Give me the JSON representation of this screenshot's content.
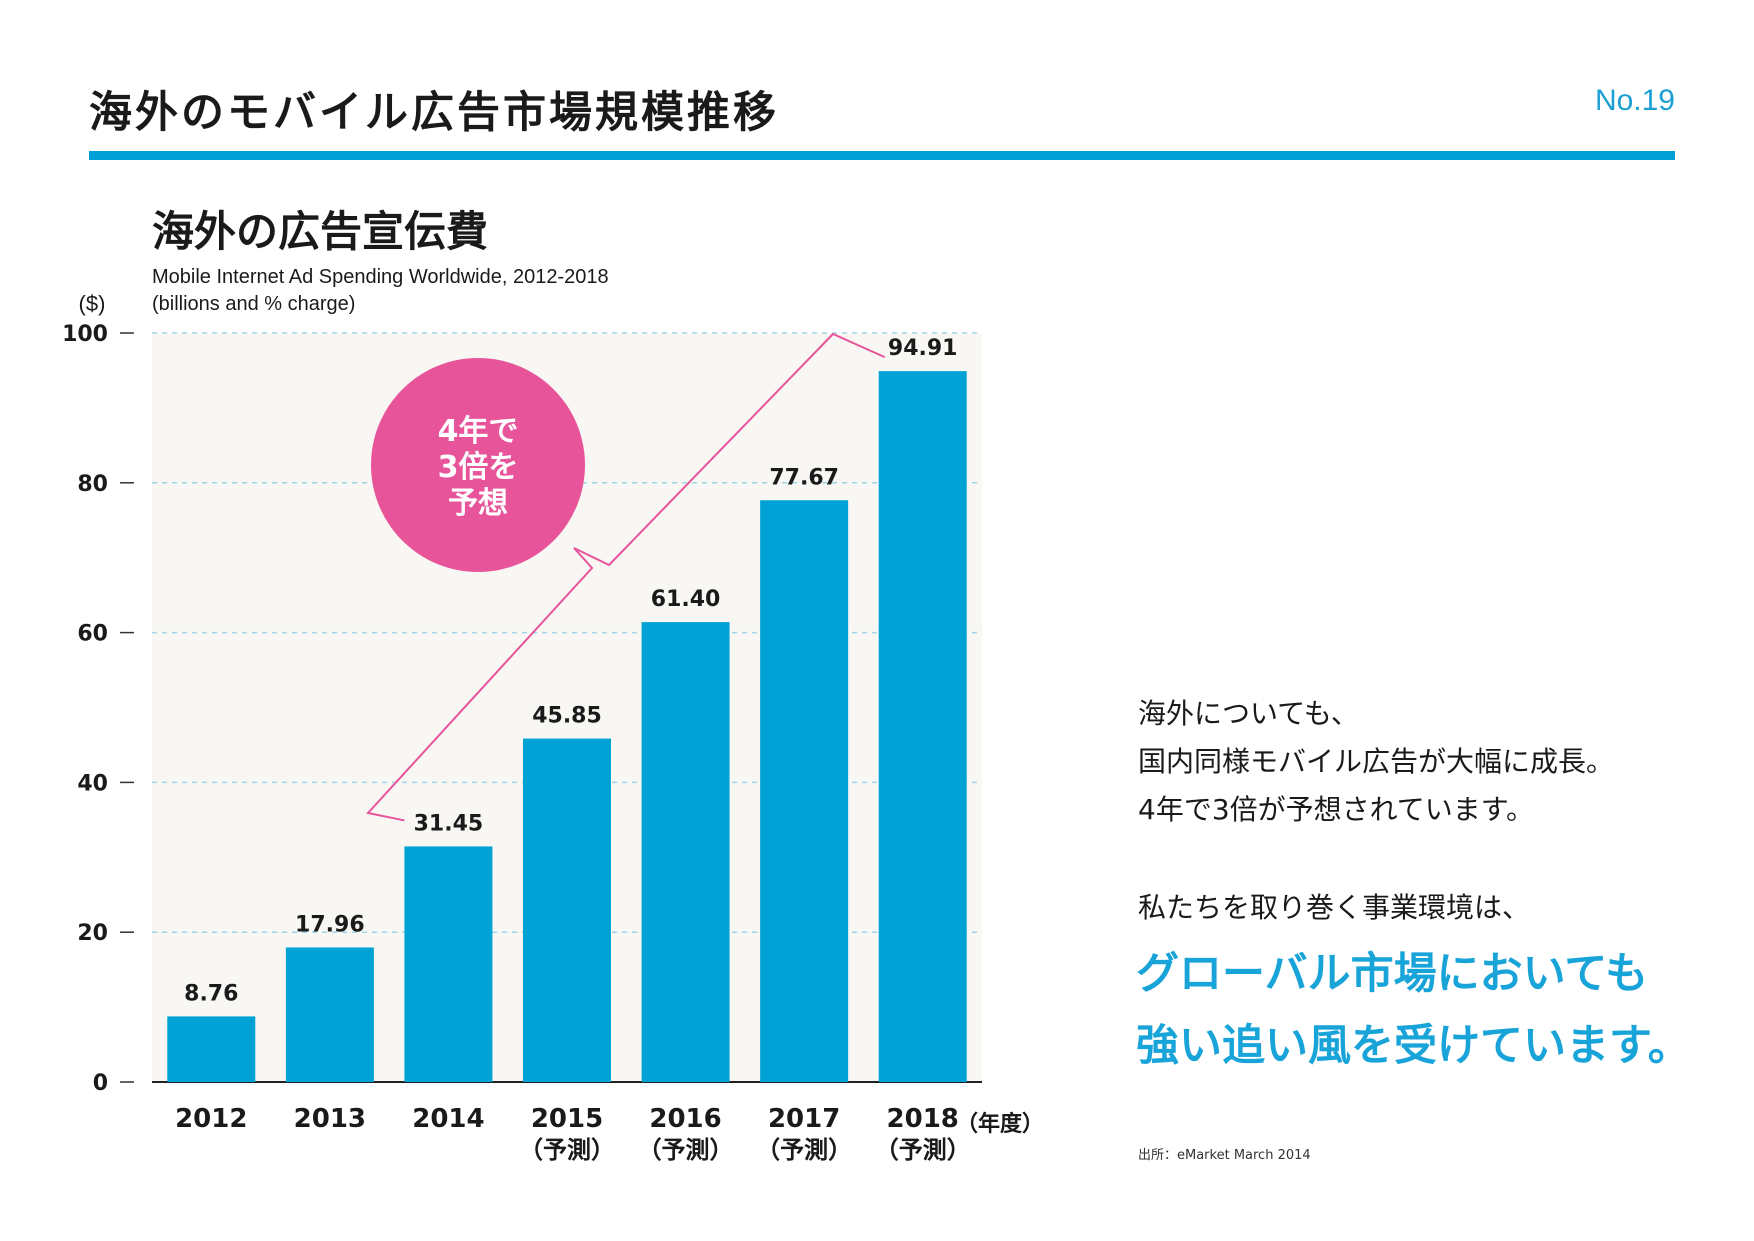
{
  "header": {
    "title": "海外のモバイル広告市場規模推移",
    "page_number": "No.19"
  },
  "colors": {
    "accent": "#00a0d6",
    "bar": "#00a2d5",
    "badge": "#e8549a",
    "emphasis": "#18a4d9",
    "plot_background": "#f8f7f4"
  },
  "chart_section": {
    "title": "海外の広告宣伝費",
    "source_line1": "Mobile Internet Ad Spending Worldwide, 2012-2018",
    "source_line2": "(billions and % charge)"
  },
  "chart_data": {
    "type": "bar",
    "title": "海外の広告宣伝費",
    "subtitle": "Mobile Internet Ad Spending Worldwide, 2012-2018 (billions and % charge)",
    "ylabel": "($)",
    "xlabel": "（年度）",
    "ylim": [
      0,
      100
    ],
    "yticks": [
      0,
      20,
      40,
      60,
      80,
      100
    ],
    "grid": true,
    "categories": [
      "2012",
      "2013",
      "2014",
      "2015",
      "2016",
      "2017",
      "2018"
    ],
    "category_notes": [
      "",
      "",
      "",
      "（予測）",
      "（予測）",
      "（予測）",
      "（予測）"
    ],
    "values": [
      8.76,
      17.96,
      31.45,
      45.85,
      61.4,
      77.67,
      94.91
    ],
    "value_labels": [
      "8.76",
      "17.96",
      "31.45",
      "45.85",
      "61.40",
      "77.67",
      "94.91"
    ],
    "annotation": {
      "text_lines": [
        "4年で",
        "3倍を",
        "予想"
      ],
      "from_category": "2014",
      "to_category": "2018"
    }
  },
  "right_panel": {
    "lines": [
      "海外についても、",
      "国内同様モバイル広告が大幅に成長。",
      "4年で3倍が予想されています。"
    ],
    "env_line": "私たちを取り巻く事業環境は、",
    "emphasis_lines": [
      "グローバル市場においても",
      "強い追い風を受けています。"
    ]
  },
  "footnote": "出所：eMarket March 2014"
}
